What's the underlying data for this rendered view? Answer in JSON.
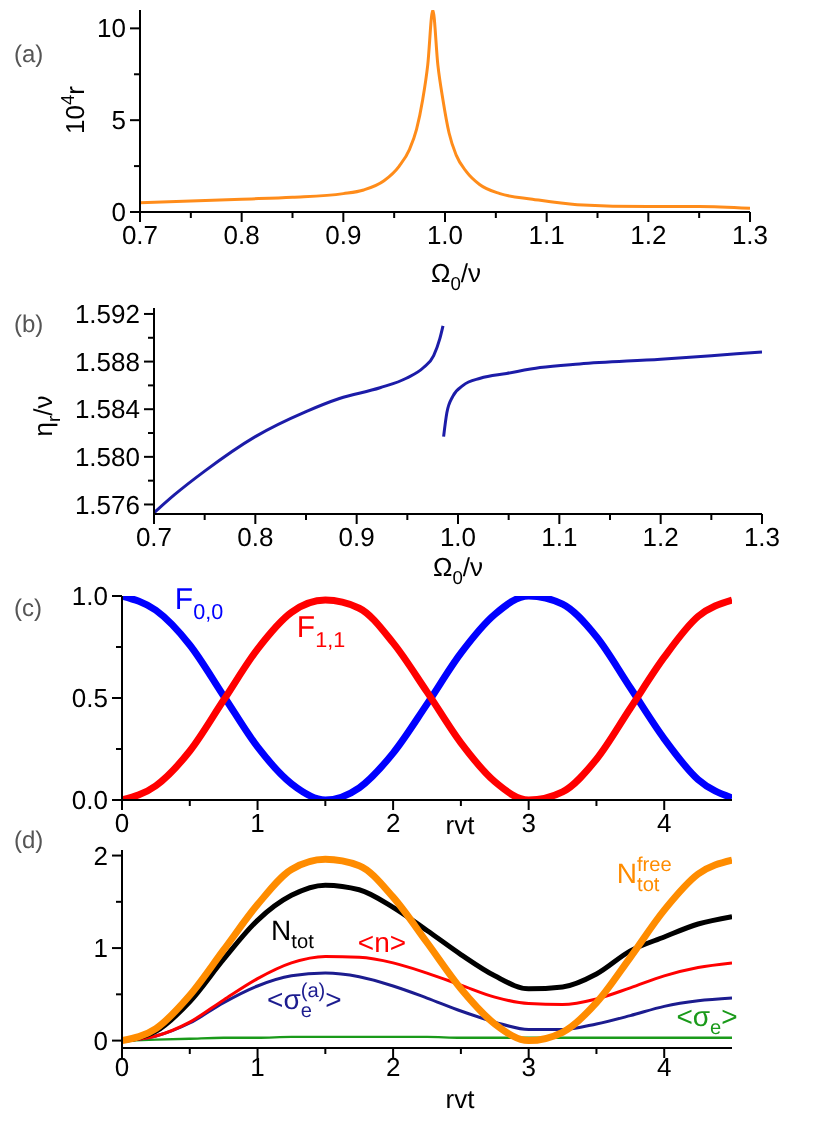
{
  "chart_data": [
    {
      "type": "line",
      "title": "(a)",
      "xlabel": "Ω$_{0}$/ν",
      "ylabel": "10$^{4}$r",
      "x": [
        0.7,
        0.75,
        0.8,
        0.85,
        0.9,
        0.92,
        0.94,
        0.955,
        0.965,
        0.972,
        0.978,
        0.983,
        0.988,
        0.993,
        0.998,
        1.004,
        1.011,
        1.021,
        1.034,
        1.054,
        1.086,
        1.13,
        1.2,
        1.25,
        1.3
      ],
      "series": [
        {
          "color": "#ff8c1a",
          "values": [
            0.5,
            0.6,
            0.7,
            0.8,
            1.0,
            1.2,
            1.7,
            2.5,
            3.4,
            4.5,
            6.1,
            8.0,
            11.0,
            8.0,
            6.1,
            4.3,
            3.1,
            2.2,
            1.5,
            1.0,
            0.7,
            0.4,
            0.3,
            0.3,
            0.2
          ]
        }
      ],
      "xlim": [
        0.7,
        1.3
      ],
      "xticks": [
        0.7,
        {
          "value": 0.75,
          "label": null
        },
        0.8,
        {
          "value": 0.85,
          "label": null
        },
        0.9,
        {
          "value": 0.95,
          "label": null
        },
        {
          "value": 1.0,
          "label": "1.0"
        },
        {
          "value": 1.05,
          "label": null
        },
        1.1,
        {
          "value": 1.15,
          "label": null
        },
        1.2,
        {
          "value": 1.25,
          "label": null
        },
        1.3
      ],
      "ylim": [
        0,
        11
      ],
      "yticks": [
        0,
        {
          "value": 2.5,
          "label": null
        },
        5,
        {
          "value": 7.5,
          "label": null
        },
        10
      ]
    },
    {
      "type": "line",
      "title": "(b)",
      "xlabel": "Ω$_{0}$/ν",
      "ylabel": "η$_{r}$/ν",
      "x": [
        0.7,
        0.72,
        0.75,
        0.8,
        0.85,
        0.883,
        0.923,
        0.949,
        0.966,
        0.976,
        0.982,
        0.9852,
        0.9855,
        0.9858,
        0.989,
        0.995,
        1.005,
        1.022,
        1.048,
        1.081,
        1.12,
        1.2,
        1.25,
        1.3
      ],
      "series": [
        {
          "color": "#1c1ca8",
          "values": [
            1.5753,
            1.5768,
            1.5788,
            1.5817,
            1.5838,
            1.5849,
            1.5858,
            1.5866,
            1.5875,
            1.5885,
            1.5899,
            1.591,
            null,
            1.5817,
            1.5837,
            1.5851,
            1.586,
            1.5866,
            1.587,
            1.5875,
            1.5878,
            1.5882,
            1.5885,
            1.5888
          ]
        }
      ],
      "xlim": [
        0.7,
        1.3
      ],
      "xticks": [
        0.7,
        {
          "value": 0.75,
          "label": null
        },
        0.8,
        {
          "value": 0.85,
          "label": null
        },
        0.9,
        {
          "value": 0.95,
          "label": null
        },
        {
          "value": 1.0,
          "label": "1.0"
        },
        {
          "value": 1.05,
          "label": null
        },
        1.1,
        {
          "value": 1.15,
          "label": null
        },
        1.2,
        {
          "value": 1.25,
          "label": null
        },
        1.3
      ],
      "ylim": [
        1.5752,
        1.5925
      ],
      "yticks": [
        1.576,
        {
          "value": 1.578,
          "label": null
        },
        {
          "value": 1.58,
          "label": "1.580"
        },
        {
          "value": 1.582,
          "label": null
        },
        1.584,
        {
          "value": 1.586,
          "label": null
        },
        1.588,
        {
          "value": 1.59,
          "label": null
        },
        1.592
      ]
    },
    {
      "type": "line",
      "title": "(c)",
      "xlabel": "rvt",
      "x": [
        0,
        0.25,
        0.5,
        0.75,
        1,
        1.25,
        1.5,
        1.75,
        2,
        2.25,
        2.5,
        2.75,
        3,
        3.25,
        3.5,
        3.75,
        4,
        4.25,
        4.5
      ],
      "series": [
        {
          "name": "F$_{0,0}$",
          "color": "#0000ff",
          "values": [
            1.0,
            0.93,
            0.76,
            0.51,
            0.26,
            0.08,
            0.0,
            0.06,
            0.23,
            0.47,
            0.72,
            0.91,
            1.0,
            0.96,
            0.8,
            0.55,
            0.3,
            0.1,
            0.01
          ]
        },
        {
          "name": "F$_{1,1}$",
          "color": "#ff0000",
          "values": [
            0.0,
            0.07,
            0.24,
            0.49,
            0.74,
            0.92,
            0.98,
            0.94,
            0.77,
            0.53,
            0.28,
            0.09,
            0.0,
            0.04,
            0.2,
            0.45,
            0.7,
            0.9,
            0.98
          ]
        }
      ],
      "xlim": [
        0,
        4.5
      ],
      "xticks": [
        0,
        {
          "value": 0.5,
          "label": null
        },
        1,
        {
          "value": 1.5,
          "label": null
        },
        2,
        {
          "value": 2.5,
          "label": null
        },
        3,
        {
          "value": 3.5,
          "label": null
        },
        4
      ],
      "ylim": [
        0,
        1
      ],
      "yticks": [
        {
          "value": 0,
          "label": "0.0"
        },
        {
          "value": 0.25,
          "label": null
        },
        {
          "value": 0.5,
          "label": "0.5"
        },
        {
          "value": 0.75,
          "label": null
        },
        {
          "value": 1,
          "label": "1.0"
        }
      ]
    },
    {
      "type": "line",
      "title": "(d)",
      "xlabel": "rvt",
      "x": [
        0,
        0.25,
        0.5,
        0.75,
        1,
        1.25,
        1.5,
        1.75,
        2,
        2.25,
        2.5,
        2.75,
        3,
        3.25,
        3.5,
        3.75,
        4,
        4.25,
        4.5
      ],
      "series": [
        {
          "name": "<σ$_{e}$>",
          "color": "#1a9a1a",
          "values": [
            0.0,
            0.01,
            0.02,
            0.03,
            0.03,
            0.04,
            0.04,
            0.04,
            0.04,
            0.04,
            0.03,
            0.03,
            0.03,
            0.03,
            0.03,
            0.03,
            0.03,
            0.03,
            0.03
          ]
        },
        {
          "name": "<σ$_{e}$$^{(a)}$>",
          "color": "#1c1c8f",
          "values": [
            0.0,
            0.05,
            0.19,
            0.41,
            0.59,
            0.7,
            0.73,
            0.69,
            0.59,
            0.46,
            0.32,
            0.2,
            0.12,
            0.12,
            0.18,
            0.27,
            0.37,
            0.43,
            0.46
          ]
        },
        {
          "name": "<n>",
          "color": "#ff0000",
          "values": [
            0.0,
            0.05,
            0.2,
            0.44,
            0.67,
            0.84,
            0.91,
            0.9,
            0.84,
            0.73,
            0.6,
            0.47,
            0.4,
            0.39,
            0.45,
            0.57,
            0.7,
            0.79,
            0.84
          ]
        },
        {
          "name": "N$_{tot}$",
          "color": "#000000",
          "values": [
            0.0,
            0.1,
            0.42,
            0.88,
            1.3,
            1.57,
            1.68,
            1.63,
            1.44,
            1.19,
            0.93,
            0.7,
            0.56,
            0.58,
            0.72,
            0.97,
            1.12,
            1.26,
            1.34
          ]
        },
        {
          "name": "N$^{free}$$_{tot}$",
          "color": "#ff8c00",
          "values": [
            0.0,
            0.13,
            0.49,
            0.98,
            1.47,
            1.85,
            1.96,
            1.89,
            1.55,
            1.06,
            0.56,
            0.18,
            0.0,
            0.09,
            0.41,
            0.9,
            1.41,
            1.8,
            1.95
          ]
        }
      ],
      "xlim": [
        0,
        4.5
      ],
      "xticks": [
        0,
        {
          "value": 0.5,
          "label": null
        },
        1,
        {
          "value": 1.5,
          "label": null
        },
        2,
        {
          "value": 2.5,
          "label": null
        },
        3,
        {
          "value": 3.5,
          "label": null
        },
        4
      ],
      "ylim": [
        -0.08,
        2.06
      ],
      "yticks": [
        0,
        {
          "value": 0.5,
          "label": null
        },
        1,
        {
          "value": 1.5,
          "label": null
        },
        2
      ]
    }
  ]
}
